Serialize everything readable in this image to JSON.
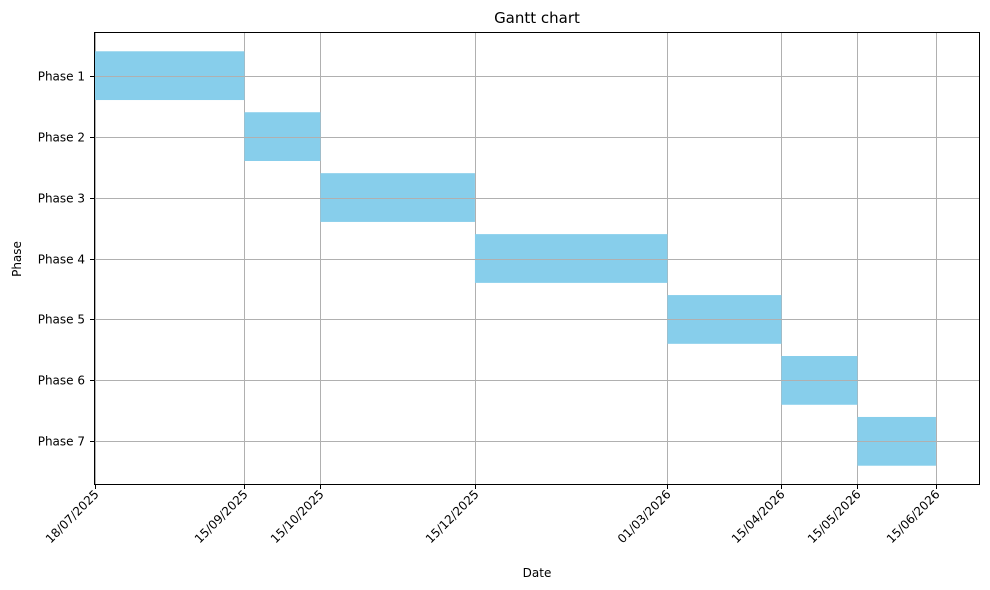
{
  "chart_data": {
    "type": "gantt",
    "title": "Gantt chart",
    "xlabel": "Date",
    "ylabel": "Phase",
    "bar_color": "#87ceeb",
    "grid": true,
    "x_tick_labels": [
      "18/07/2025",
      "15/09/2025",
      "15/10/2025",
      "15/12/2025",
      "01/03/2026",
      "15/04/2026",
      "15/05/2026",
      "15/06/2026"
    ],
    "x_ticks": [
      "2025-07-18",
      "2025-09-15",
      "2025-10-15",
      "2025-12-15",
      "2026-03-01",
      "2026-04-15",
      "2026-05-15",
      "2026-06-15"
    ],
    "xlim": [
      "2025-07-18",
      "2026-07-02"
    ],
    "tasks": [
      {
        "name": "Phase 1",
        "start": "2025-07-18",
        "end": "2025-09-15"
      },
      {
        "name": "Phase 2",
        "start": "2025-09-15",
        "end": "2025-10-15"
      },
      {
        "name": "Phase 3",
        "start": "2025-10-15",
        "end": "2025-12-15"
      },
      {
        "name": "Phase 4",
        "start": "2025-12-15",
        "end": "2026-03-01"
      },
      {
        "name": "Phase 5",
        "start": "2026-03-01",
        "end": "2026-04-15"
      },
      {
        "name": "Phase 6",
        "start": "2026-04-15",
        "end": "2026-05-15"
      },
      {
        "name": "Phase 7",
        "start": "2026-05-15",
        "end": "2026-06-15"
      }
    ]
  }
}
